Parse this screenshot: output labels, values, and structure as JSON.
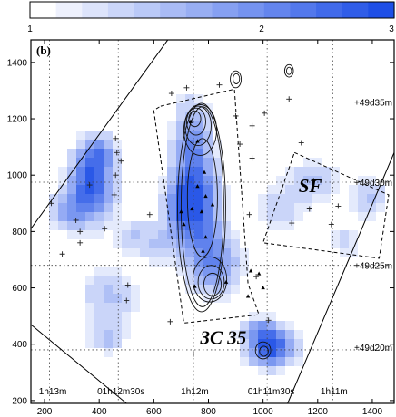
{
  "chart_data": {
    "type": "heatmap",
    "panel_label": "(b)",
    "colorbar": {
      "min": 1,
      "max": 3,
      "tick_labels": [
        "1",
        "2",
        "3"
      ],
      "color_low": "#ffffff",
      "color_high": "#1f4fe6"
    },
    "xlim": [
      150,
      1480
    ],
    "ylim": [
      190,
      1480
    ],
    "x_ticks": [
      200,
      400,
      600,
      800,
      1000,
      1200,
      1400
    ],
    "y_ticks": [
      200,
      400,
      600,
      800,
      1000,
      1200,
      1400
    ],
    "x_tick_labels": [
      "200",
      "400",
      "600",
      "800",
      "1000",
      "1200",
      "1400"
    ],
    "y_tick_labels": [
      "200",
      "400",
      "600",
      "800",
      "1000",
      "1200",
      "1400"
    ],
    "grid_x": [
      218,
      470,
      745,
      1015,
      1255
    ],
    "grid_y": [
      380,
      680,
      975,
      1260
    ],
    "ra_labels": [
      {
        "text": "1h13m",
        "x": 230
      },
      {
        "text": "01h12m30s",
        "x": 480
      },
      {
        "text": "1h12m",
        "x": 750
      },
      {
        "text": "01h11m30s",
        "x": 1030
      },
      {
        "text": "1h11m",
        "x": 1260
      }
    ],
    "dec_labels": [
      {
        "text": "+49d35m",
        "y": 1260
      },
      {
        "text": "+49d30m",
        "y": 975
      },
      {
        "text": "+49d25m",
        "y": 680
      },
      {
        "text": "+49d20m",
        "y": 390
      }
    ],
    "annotations": [
      {
        "text": "SF",
        "x": 1130,
        "y": 940
      },
      {
        "text": "3C 35",
        "x": 770,
        "y": 400
      }
    ],
    "field_outline": [
      [
        150,
        490
      ],
      [
        150,
        810
      ],
      [
        655,
        1485
      ],
      [
        1480,
        1485
      ],
      [
        1480,
        1080
      ],
      [
        1090,
        190
      ],
      [
        1020,
        190
      ]
    ],
    "field_outline_lower": [
      [
        150,
        470
      ],
      [
        500,
        190
      ]
    ],
    "slit_box": [
      [
        625,
        1245
      ],
      [
        895,
        1305
      ],
      [
        945,
        615
      ],
      [
        985,
        505
      ],
      [
        710,
        475
      ],
      [
        600,
        1230
      ]
    ],
    "sf_box": [
      [
        1115,
        1080
      ],
      [
        1460,
        930
      ],
      [
        1425,
        705
      ],
      [
        1000,
        760
      ]
    ],
    "blobs": [
      {
        "x": 370,
        "y": 960,
        "sx": 55,
        "sy": 85,
        "amp": 1.0
      },
      {
        "x": 400,
        "y": 1080,
        "sx": 40,
        "sy": 45,
        "amp": 0.55
      },
      {
        "x": 280,
        "y": 870,
        "sx": 45,
        "sy": 45,
        "amp": 0.45
      },
      {
        "x": 740,
        "y": 1120,
        "sx": 45,
        "sy": 100,
        "amp": 0.6
      },
      {
        "x": 760,
        "y": 880,
        "sx": 55,
        "sy": 120,
        "amp": 0.95
      },
      {
        "x": 690,
        "y": 900,
        "sx": 35,
        "sy": 70,
        "amp": 0.55
      },
      {
        "x": 830,
        "y": 680,
        "sx": 60,
        "sy": 70,
        "amp": 0.6
      },
      {
        "x": 620,
        "y": 760,
        "sx": 50,
        "sy": 60,
        "amp": 0.3
      },
      {
        "x": 1030,
        "y": 385,
        "sx": 60,
        "sy": 45,
        "amp": 1.0
      },
      {
        "x": 990,
        "y": 450,
        "sx": 50,
        "sy": 30,
        "amp": 0.5
      },
      {
        "x": 440,
        "y": 570,
        "sx": 70,
        "sy": 70,
        "amp": 0.35
      },
      {
        "x": 430,
        "y": 420,
        "sx": 45,
        "sy": 35,
        "amp": 0.35
      },
      {
        "x": 1190,
        "y": 980,
        "sx": 70,
        "sy": 50,
        "amp": 0.32
      },
      {
        "x": 1390,
        "y": 920,
        "sx": 45,
        "sy": 50,
        "amp": 0.35
      },
      {
        "x": 1060,
        "y": 880,
        "sx": 70,
        "sy": 60,
        "amp": 0.25
      },
      {
        "x": 520,
        "y": 780,
        "sx": 40,
        "sy": 40,
        "amp": 0.3
      },
      {
        "x": 1300,
        "y": 760,
        "sx": 40,
        "sy": 40,
        "amp": 0.25
      }
    ],
    "contours": [
      {
        "cx": 775,
        "cy": 885,
        "rx": 88,
        "ry": 370
      },
      {
        "cx": 778,
        "cy": 888,
        "rx": 78,
        "ry": 355
      },
      {
        "cx": 770,
        "cy": 1160,
        "rx": 60,
        "ry": 90
      },
      {
        "cx": 762,
        "cy": 1175,
        "rx": 48,
        "ry": 70
      },
      {
        "cx": 755,
        "cy": 1190,
        "rx": 35,
        "ry": 48
      },
      {
        "cx": 750,
        "cy": 1200,
        "rx": 22,
        "ry": 28
      },
      {
        "cx": 805,
        "cy": 630,
        "rx": 62,
        "ry": 80
      },
      {
        "cx": 810,
        "cy": 620,
        "rx": 48,
        "ry": 60
      },
      {
        "cx": 815,
        "cy": 612,
        "rx": 32,
        "ry": 40
      },
      {
        "cx": 778,
        "cy": 920,
        "rx": 55,
        "ry": 210
      },
      {
        "cx": 900,
        "cy": 1340,
        "rx": 20,
        "ry": 30
      },
      {
        "cx": 902,
        "cy": 1342,
        "rx": 12,
        "ry": 18
      },
      {
        "cx": 1095,
        "cy": 1370,
        "rx": 16,
        "ry": 22
      },
      {
        "cx": 1095,
        "cy": 1370,
        "rx": 9,
        "ry": 13
      },
      {
        "cx": 1000,
        "cy": 378,
        "rx": 28,
        "ry": 30
      },
      {
        "cx": 1003,
        "cy": 375,
        "rx": 16,
        "ry": 18
      }
    ],
    "crosses": [
      [
        225,
        900
      ],
      [
        265,
        720
      ],
      [
        330,
        760
      ],
      [
        315,
        840
      ],
      [
        330,
        800
      ],
      [
        365,
        965
      ],
      [
        460,
        1130
      ],
      [
        465,
        1080
      ],
      [
        480,
        1050
      ],
      [
        460,
        1000
      ],
      [
        455,
        930
      ],
      [
        420,
        810
      ],
      [
        505,
        610
      ],
      [
        500,
        555
      ],
      [
        660,
        480
      ],
      [
        745,
        365
      ],
      [
        585,
        860
      ],
      [
        665,
        1290
      ],
      [
        720,
        1310
      ],
      [
        840,
        1320
      ],
      [
        900,
        1210
      ],
      [
        915,
        1110
      ],
      [
        960,
        1060
      ],
      [
        960,
        1175
      ],
      [
        1005,
        1220
      ],
      [
        1095,
        1270
      ],
      [
        1140,
        1115
      ],
      [
        1185,
        980
      ],
      [
        1275,
        890
      ],
      [
        1250,
        825
      ],
      [
        1170,
        880
      ],
      [
        950,
        860
      ],
      [
        975,
        640
      ],
      [
        1105,
        830
      ],
      [
        1020,
        485
      ]
    ],
    "triangles": [
      [
        735,
        1190
      ],
      [
        760,
        1120
      ],
      [
        785,
        1010
      ],
      [
        760,
        960
      ],
      [
        790,
        925
      ],
      [
        815,
        895
      ],
      [
        700,
        870
      ],
      [
        740,
        880
      ],
      [
        775,
        870
      ],
      [
        710,
        825
      ],
      [
        790,
        780
      ],
      [
        780,
        730
      ],
      [
        955,
        660
      ],
      [
        985,
        650
      ],
      [
        1000,
        600
      ],
      [
        945,
        570
      ],
      [
        750,
        605
      ],
      [
        865,
        620
      ]
    ]
  }
}
